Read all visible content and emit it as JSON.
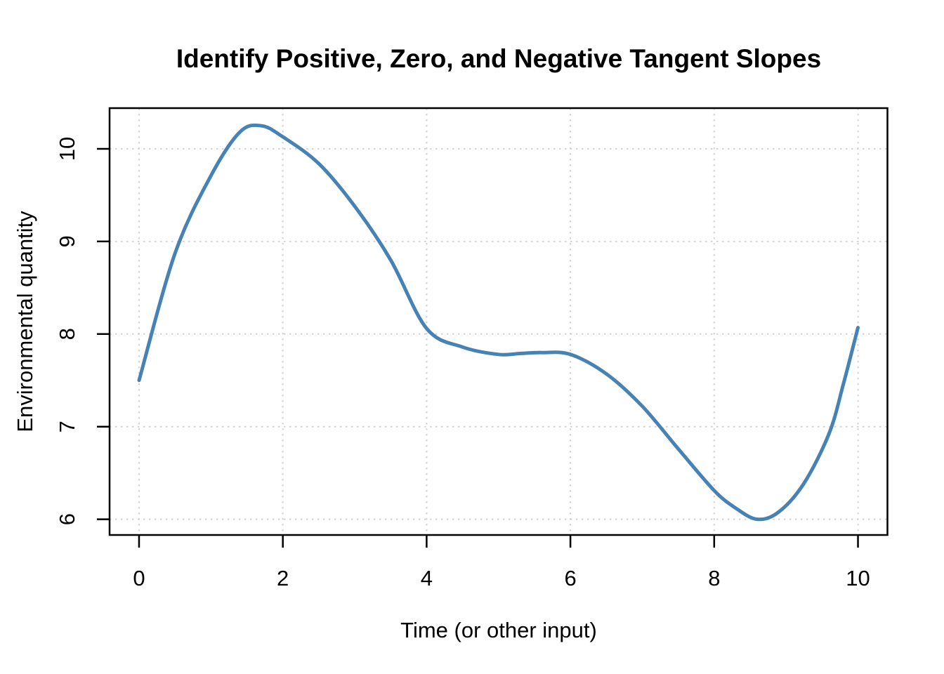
{
  "chart_data": {
    "type": "line",
    "title": "Identify Positive, Zero, and Negative Tangent Slopes",
    "xlabel": "Time (or other input)",
    "ylabel": "Environmental quantity",
    "x_ticks": [
      0,
      2,
      4,
      6,
      8,
      10
    ],
    "x_tick_labels": [
      "0",
      "2",
      "4",
      "6",
      "8",
      "10"
    ],
    "y_ticks": [
      6,
      7,
      8,
      9,
      10
    ],
    "y_tick_labels": [
      "6",
      "7",
      "8",
      "9",
      "10"
    ],
    "xlim": [
      -0.41,
      10.41
    ],
    "ylim": [
      5.83,
      10.44
    ],
    "grid": "dotted",
    "legend": "none",
    "colors": {
      "curve": "#4682B4",
      "grid": "#D3D3D3",
      "axis": "#000000",
      "background": "#FFFFFF"
    },
    "series": [
      {
        "name": "environmental-quantity-curve",
        "color": "#4682B4",
        "points": [
          [
            0.0,
            7.5
          ],
          [
            0.5,
            8.87
          ],
          [
            1.0,
            9.71
          ],
          [
            1.4,
            10.18
          ],
          [
            1.7,
            10.25
          ],
          [
            2.0,
            10.13
          ],
          [
            2.5,
            9.84
          ],
          [
            3.0,
            9.38
          ],
          [
            3.5,
            8.8
          ],
          [
            4.0,
            8.06
          ],
          [
            4.5,
            7.86
          ],
          [
            5.0,
            7.78
          ],
          [
            5.3,
            7.79
          ],
          [
            5.6,
            7.8
          ],
          [
            6.0,
            7.78
          ],
          [
            6.5,
            7.57
          ],
          [
            7.0,
            7.22
          ],
          [
            7.5,
            6.76
          ],
          [
            8.0,
            6.31
          ],
          [
            8.3,
            6.12
          ],
          [
            8.6,
            6.0
          ],
          [
            8.9,
            6.08
          ],
          [
            9.25,
            6.39
          ],
          [
            9.6,
            6.93
          ],
          [
            9.8,
            7.47
          ],
          [
            10.0,
            8.07
          ]
        ]
      }
    ]
  }
}
